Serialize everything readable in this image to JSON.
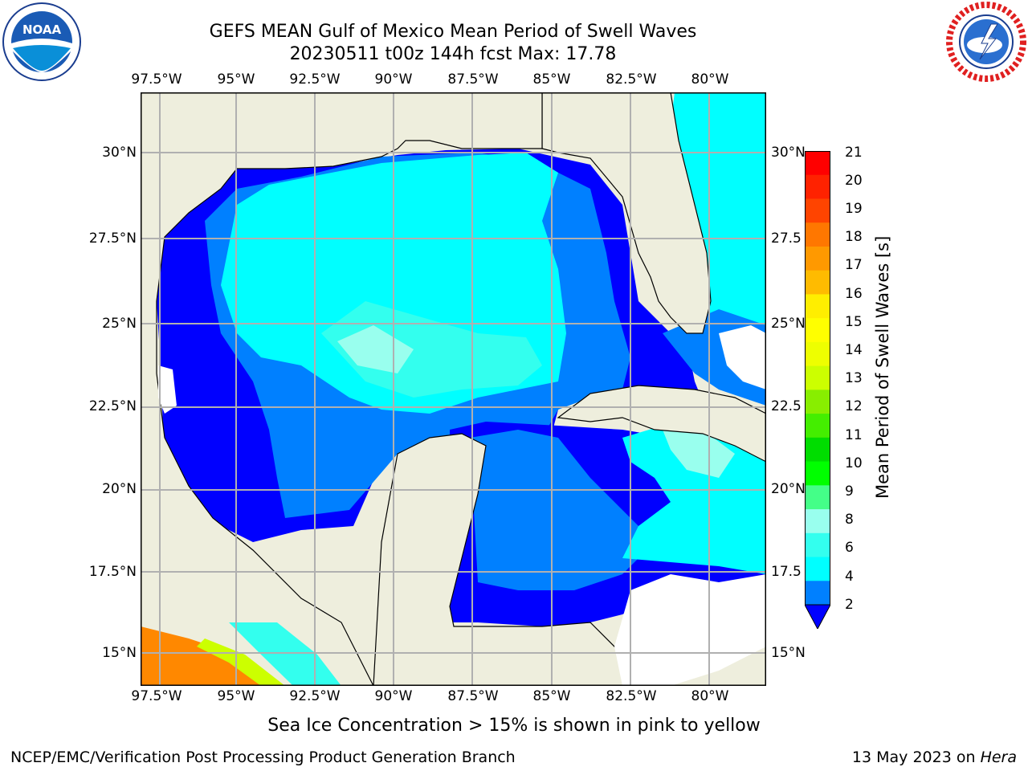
{
  "title": {
    "line1": "GEFS MEAN Gulf of Mexico Mean Period of Swell Waves",
    "line2": "20230511 t00z 144h fcst   Max: 17.78"
  },
  "logos": {
    "noaa": {
      "text": "NOAA",
      "ring": "NATIONAL OCEANIC AND ATMOSPHERIC ADMINISTRATION · U.S. DEPARTMENT OF COMMERCE"
    },
    "nws": {
      "ring": "NATIONAL WEATHER SERVICE"
    }
  },
  "map": {
    "lon_labels": [
      "97.5°W",
      "95°W",
      "92.5°W",
      "90°W",
      "87.5°W",
      "85°W",
      "82.5°W",
      "80°W"
    ],
    "lat_labels_left": [
      "30°N",
      "27.5°N",
      "25°N",
      "22.5°N",
      "20°N",
      "17.5°N",
      "15°N"
    ],
    "lat_labels_right": [
      "30°N",
      "27.5",
      "25°N",
      "22.5",
      "20°N",
      "17.5",
      "15°N"
    ],
    "colors": {
      "land": "#eeeedd",
      "ocean_2_4": "#0000ff",
      "ocean_4_6": "#0080ff",
      "ocean_6_8": "#00ffff",
      "ocean_8_9": "#33ffee",
      "ocean_9_10": "#99ffee",
      "coast": "#000000",
      "grid": "#b0b0b0"
    }
  },
  "colorbar": {
    "title": "Mean Period of Swell Waves [s]",
    "ticks": [
      "21",
      "20",
      "19",
      "18",
      "17",
      "16",
      "15",
      "14",
      "13",
      "12",
      "11",
      "10",
      "9",
      "8",
      "6",
      "4",
      "2"
    ],
    "bins": [
      {
        "color": "#ff0000"
      },
      {
        "color": "#ff2200"
      },
      {
        "color": "#ff4400"
      },
      {
        "color": "#ff7700"
      },
      {
        "color": "#ff9900"
      },
      {
        "color": "#ffbb00"
      },
      {
        "color": "#ffee00"
      },
      {
        "color": "#ffff00"
      },
      {
        "color": "#eeff00"
      },
      {
        "color": "#ccff00"
      },
      {
        "color": "#88ee00"
      },
      {
        "color": "#44ee00"
      },
      {
        "color": "#00dd00"
      },
      {
        "color": "#00ff00"
      },
      {
        "color": "#44ff88"
      },
      {
        "color": "#99ffee"
      },
      {
        "color": "#33ffee"
      },
      {
        "color": "#00ffff"
      },
      {
        "color": "#0080ff"
      }
    ],
    "under_color": "#0000ff"
  },
  "note": "Sea Ice Concentration > 15% is shown in pink to yellow",
  "footer": {
    "left": "NCEP/EMC/Verification Post Processing Product Generation Branch",
    "right_prefix": "13 May 2023 on ",
    "right_host": "Hera"
  }
}
